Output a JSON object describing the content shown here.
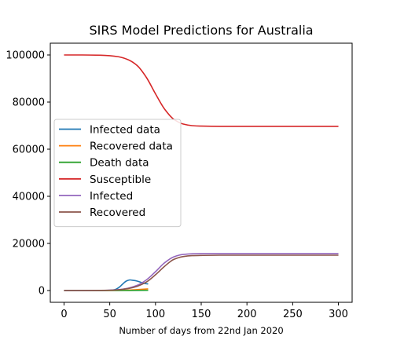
{
  "chart_data": {
    "type": "line",
    "title": "SIRS Model Predictions for Australia",
    "xlabel": "Number of days from 22nd Jan 2020",
    "ylabel": "",
    "xlim": [
      -15,
      315
    ],
    "ylim": [
      -5000,
      105000
    ],
    "xticks": [
      0,
      50,
      100,
      150,
      200,
      250,
      300
    ],
    "yticks": [
      0,
      20000,
      40000,
      60000,
      80000,
      100000
    ],
    "grid": false,
    "legend_position": "center-left",
    "series": [
      {
        "name": "Infected data",
        "color": "#1f77b4",
        "x": [
          0,
          40,
          50,
          55,
          60,
          64,
          68,
          72,
          76,
          80,
          84,
          88,
          92
        ],
        "y": [
          0,
          0,
          100,
          300,
          1300,
          2700,
          4000,
          4500,
          4300,
          4000,
          3500,
          3000,
          2800
        ]
      },
      {
        "name": "Recovered data",
        "color": "#ff7f0e",
        "x": [
          0,
          50,
          60,
          70,
          80,
          92
        ],
        "y": [
          0,
          0,
          50,
          150,
          400,
          700
        ]
      },
      {
        "name": "Death data",
        "color": "#2ca02c",
        "x": [
          0,
          50,
          70,
          92
        ],
        "y": [
          0,
          0,
          30,
          90
        ]
      },
      {
        "name": "Susceptible",
        "color": "#d62728",
        "x": [
          0,
          20,
          40,
          50,
          60,
          70,
          80,
          90,
          100,
          110,
          120,
          130,
          140,
          150,
          170,
          200,
          250,
          300
        ],
        "y": [
          100000,
          100000,
          99900,
          99700,
          99200,
          98000,
          95500,
          90500,
          83500,
          77000,
          72700,
          70700,
          70000,
          69800,
          69700,
          69700,
          69700,
          69700
        ]
      },
      {
        "name": "Infected",
        "color": "#9467bd",
        "x": [
          0,
          20,
          40,
          50,
          60,
          70,
          80,
          90,
          100,
          110,
          120,
          130,
          140,
          150,
          170,
          200,
          250,
          300
        ],
        "y": [
          0,
          0,
          50,
          150,
          400,
          1000,
          2200,
          4500,
          8000,
          11800,
          14300,
          15300,
          15600,
          15700,
          15700,
          15700,
          15700,
          15700
        ]
      },
      {
        "name": "Recovered",
        "color": "#8c564b",
        "x": [
          0,
          20,
          40,
          50,
          60,
          70,
          80,
          90,
          100,
          110,
          120,
          130,
          140,
          150,
          170,
          200,
          250,
          300
        ],
        "y": [
          0,
          0,
          50,
          100,
          300,
          800,
          1800,
          3600,
          6700,
          10300,
          13200,
          14400,
          14800,
          14900,
          15000,
          15000,
          15000,
          15000
        ]
      }
    ]
  }
}
